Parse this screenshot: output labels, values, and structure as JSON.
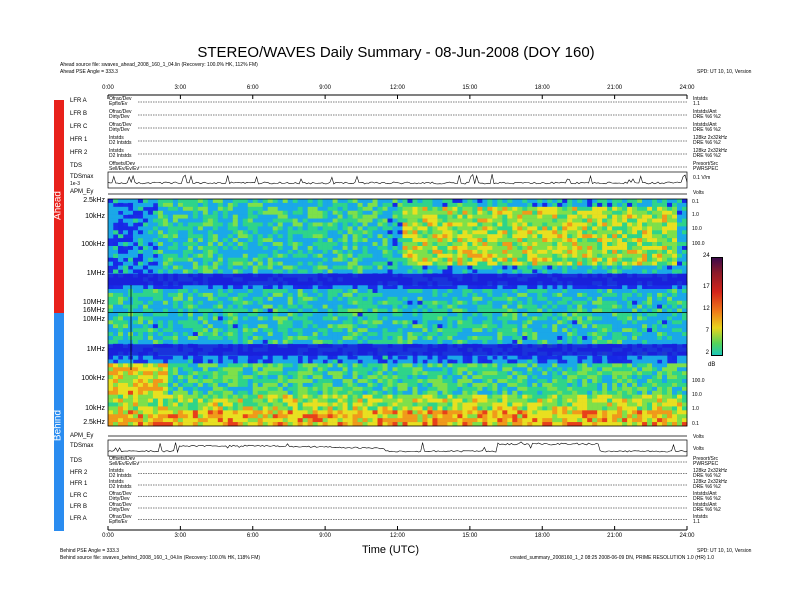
{
  "header": {
    "title": "STEREO/WAVES Daily Summary - 08-Jun-2008 (DOY 160)",
    "ahead_source": "Ahead source file: swaves_ahead_2008_160_1_04.lin (Recovery: 100.0% HK, 112% FM)",
    "ahead_angle": "Ahead PSE Angle = 333.3",
    "right_top_note": "SPD: UT 10, 10, Version"
  },
  "footer": {
    "behind_angle": "Behind PSE Angle = 333.3",
    "behind_source": "Behind source file: swaves_behind_2008_160_1_04.lin (Recovery: 100.0% HK, 118% FM)",
    "right_note": "SPD: UT 10, 10, Version",
    "right_note2": "created_summary_2008160_1_2 08:25 2008-06-09 DN, PRIME RESOLUTION 1.0 (HR) 1.0"
  },
  "sides": {
    "ahead": "Ahead",
    "behind": "Behind"
  },
  "colors": {
    "ahead_bar": "#e8211b",
    "behind_bar": "#2a8cf0"
  },
  "rows_top": [
    {
      "name": "LFR A",
      "left": "Ofrac/Dev",
      "mid": "Epflx/Ev",
      "right": "Intstds",
      "r2": "1.1"
    },
    {
      "name": "LFR B",
      "left": "Ofrac/Dev",
      "mid": "Dirty/Dev",
      "right": "Intstds/Ant",
      "r2": "DRE %6 %2"
    },
    {
      "name": "LFR C",
      "left": "Ofrac/Dev",
      "mid": "Dirty/Dev",
      "right": "Intstds/Ant",
      "r2": "DRE %6 %2"
    },
    {
      "name": "HFR 1",
      "left": "Intstds",
      "mid": "D2 Intstds",
      "right": "128kz 2x32kHz",
      "r2": "DRE %6 %2"
    },
    {
      "name": "HFR 2",
      "left": "Intstds",
      "mid": "D2 Intstds",
      "right": "128kz 2x32kHz",
      "r2": "DRE %6 %2"
    },
    {
      "name": "TDS",
      "left": "Offsets/Dev",
      "mid": "Sell/Ev/Ev/Ev",
      "right": "Presort/Src",
      "r2": "PWRSPEC"
    }
  ],
  "rows_bottom": [
    {
      "name": "TDS",
      "left": "Offsets/Dev",
      "mid": "Sell/Ev/Ev/Ev",
      "right": "Presort/Src",
      "r2": "PWRSPEC"
    },
    {
      "name": "HFR 2",
      "left": "Intstds",
      "mid": "D2 Intstds",
      "right": "128kz 2x32kHz",
      "r2": "DRE %6 %2"
    },
    {
      "name": "HFR 1",
      "left": "Intstds",
      "mid": "D2 Intstds",
      "right": "128kz 2x32kHz",
      "r2": "DRE %6 %2"
    },
    {
      "name": "LFR C",
      "left": "Ofrac/Dev",
      "mid": "Dirty/Dev",
      "right": "Intstds/Ant",
      "r2": "DRE %6 %2"
    },
    {
      "name": "LFR B",
      "left": "Ofrac/Dev",
      "mid": "Dirty/Dev",
      "right": "Intstds/Ant",
      "r2": "DRE %6 %2"
    },
    {
      "name": "LFR A",
      "left": "Ofrac/Dev",
      "mid": "Epflx/Ev",
      "right": "Intstds",
      "r2": "1.1"
    }
  ],
  "tdsmax_top": {
    "label": "TDSmax",
    "scale": "1e-3",
    "right": "0.1 V/m"
  },
  "apm_top": {
    "label": "APM_Ey",
    "right": "Volts"
  },
  "tdsmax_bottom": {
    "label": "TDSmax",
    "scale": "1e-3",
    "right": "Volts"
  },
  "apm_bottom": {
    "label": "APM_Ey",
    "right": "Volts"
  },
  "chart_data": [
    {
      "type": "heatmap",
      "title": "STEREO/WAVES Daily Summary - 08-Jun-2008 (DOY 160)",
      "xlabel": "Time (UTC)",
      "x_ticks": [
        "0:00",
        "3:00",
        "6:00",
        "9:00",
        "12:00",
        "15:00",
        "18:00",
        "21:00",
        "24:00"
      ],
      "ahead_y_ticks": [
        "2.5kHz",
        "10kHz",
        "100kHz",
        "1MHz",
        "10MHz",
        "16MHz"
      ],
      "behind_y_ticks": [
        "10MHz",
        "1MHz",
        "100kHz",
        "10kHz",
        "2.5kHz"
      ],
      "right_y_ticks_top": [
        "0.1",
        "1.0",
        "10.0",
        "100.0"
      ],
      "right_y_ticks_bottom": [
        "100.0",
        "10.0",
        "1.0",
        "0.1"
      ],
      "colorbar": {
        "ticks": [
          24,
          17,
          12,
          7,
          2
        ],
        "unit": "dB",
        "range": [
          2,
          24
        ]
      }
    }
  ]
}
